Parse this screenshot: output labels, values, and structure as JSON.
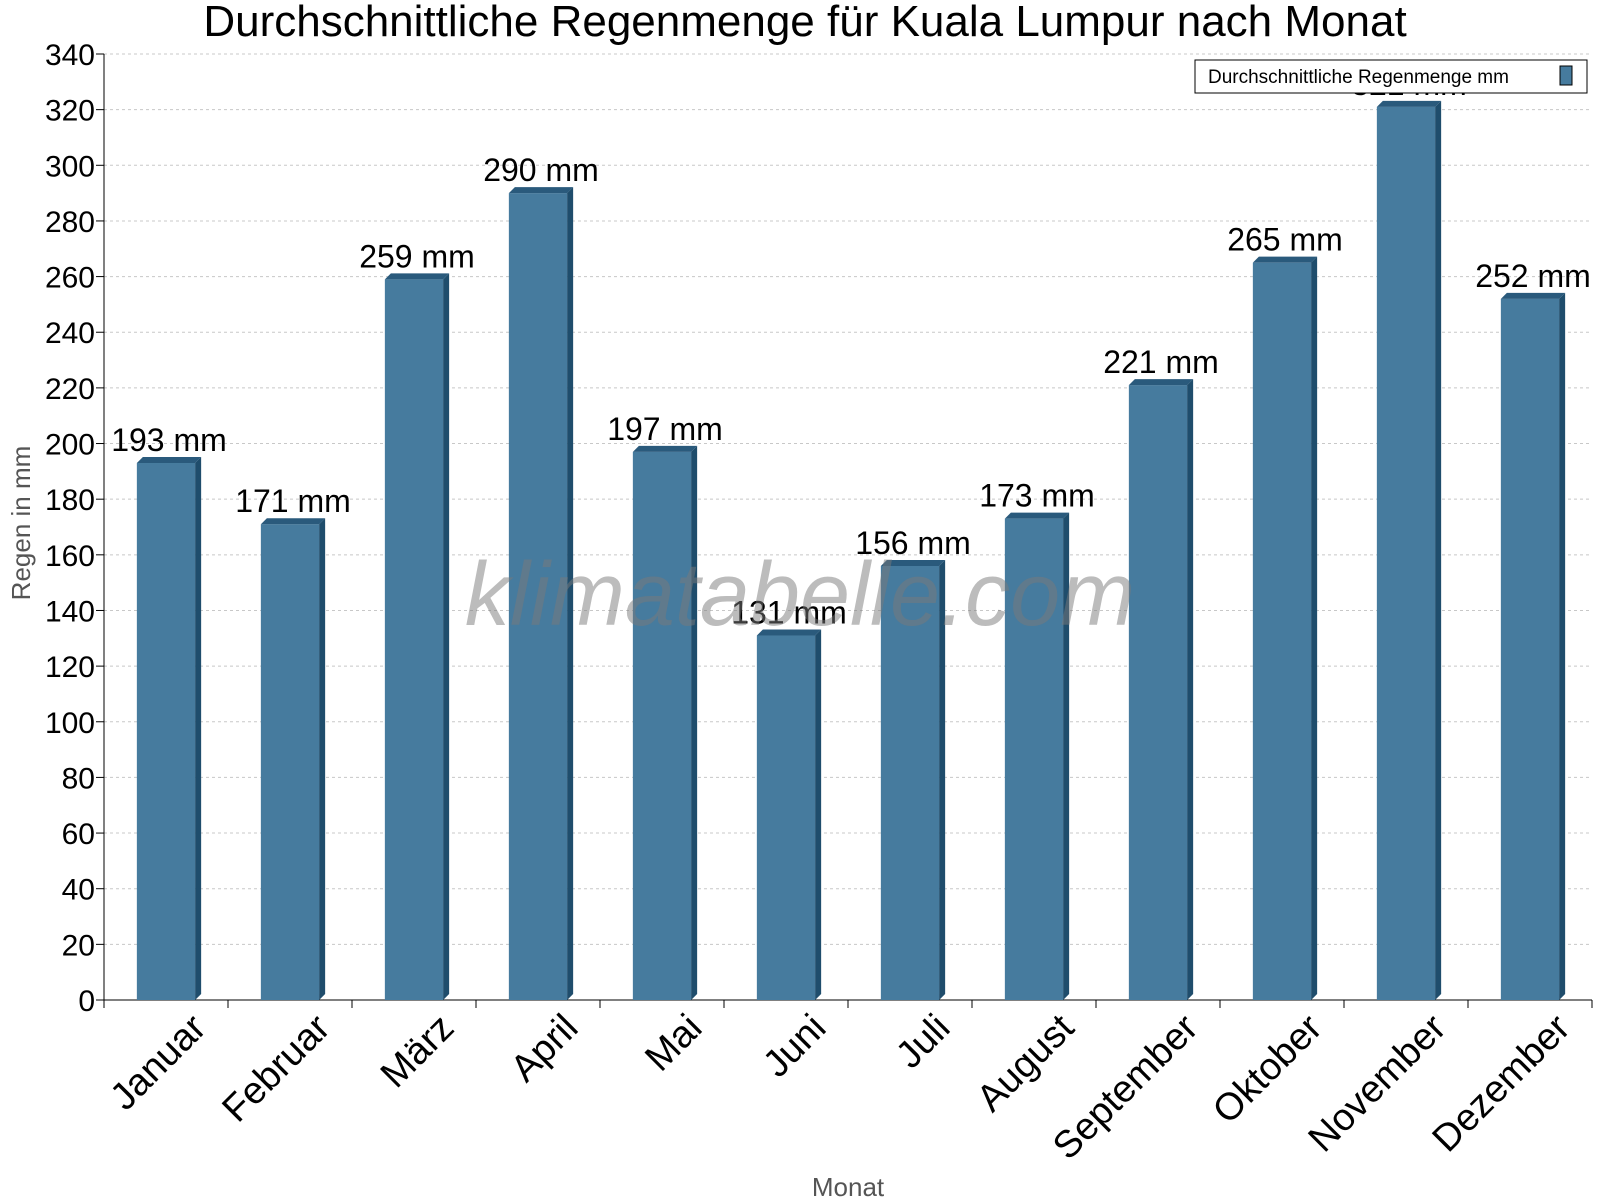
{
  "chart_data": {
    "type": "bar",
    "title": "Durchschnittliche Regenmenge für Kuala Lumpur nach Monat",
    "xlabel": "Monat",
    "ylabel": "Regen in mm",
    "ylim": [
      0,
      340
    ],
    "ytick_step": 20,
    "grid": true,
    "legend_position": "top-right",
    "unit_suffix": " mm",
    "categories": [
      "Januar",
      "Februar",
      "März",
      "April",
      "Mai",
      "Juni",
      "Juli",
      "August",
      "September",
      "Oktober",
      "November",
      "Dezember"
    ],
    "series": [
      {
        "name": "Durchschnittliche Regenmenge mm",
        "values": [
          193,
          171,
          259,
          290,
          197,
          131,
          156,
          173,
          221,
          265,
          321,
          252
        ]
      }
    ],
    "colors": {
      "bar": "#467b9e",
      "bar_side": "#1f4d6c",
      "bar_top": "#2a5a7c"
    }
  },
  "watermark": "klimatabelle.com"
}
